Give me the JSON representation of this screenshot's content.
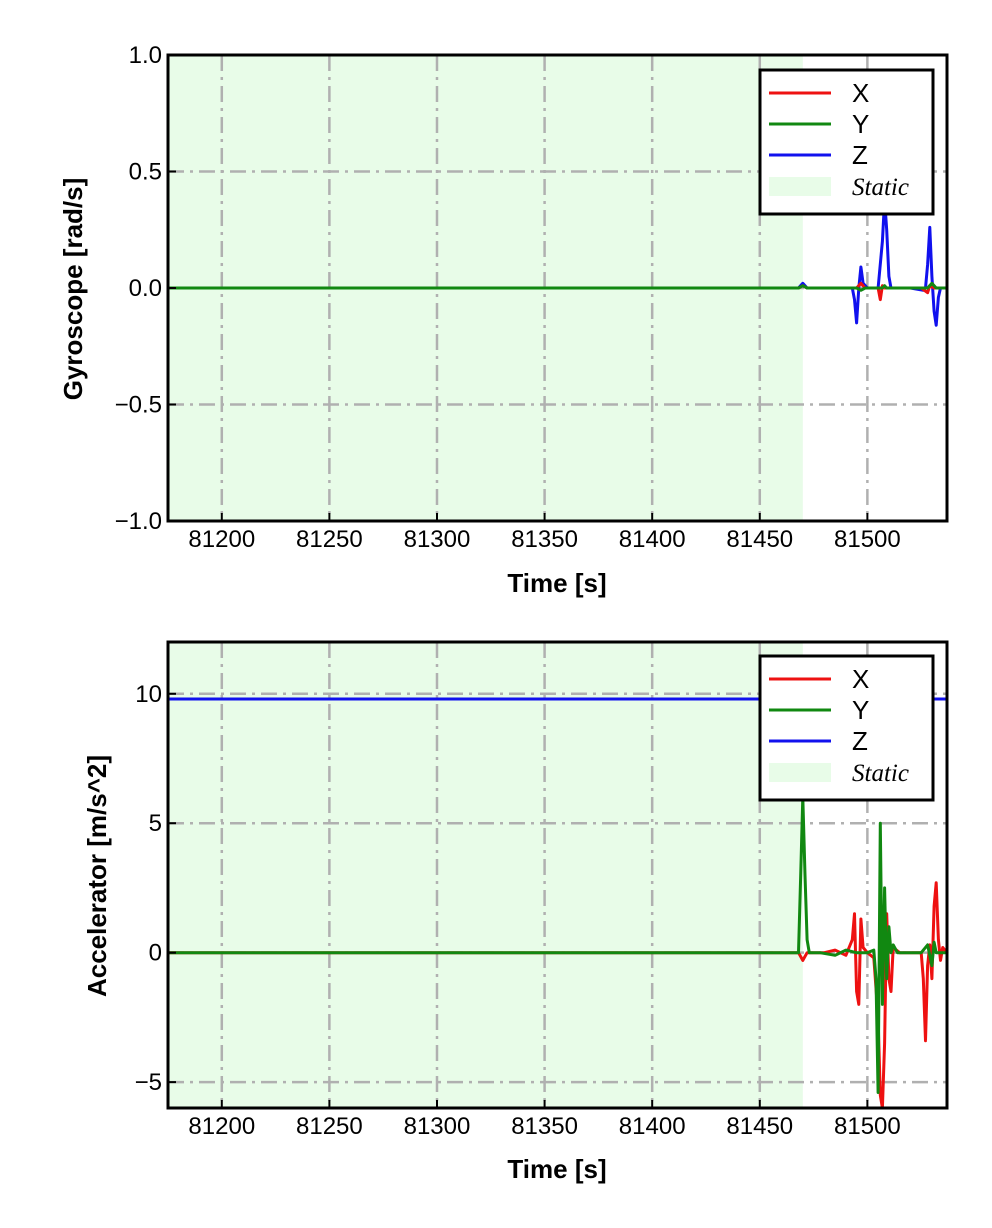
{
  "chart_data": [
    {
      "type": "line",
      "xlabel": "Time [s]",
      "ylabel": "Gyroscope [rad/s]",
      "xlim": [
        81175,
        81537
      ],
      "ylim": [
        -1.0,
        1.0
      ],
      "x_ticks": [
        81200,
        81250,
        81300,
        81350,
        81400,
        81450,
        81500
      ],
      "x_tick_labels": [
        "81200",
        "81250",
        "81300",
        "81350",
        "81400",
        "81450",
        "81500"
      ],
      "y_ticks": [
        1.0,
        0.5,
        0.0,
        -0.5,
        -1.0
      ],
      "y_tick_labels": [
        "1.0",
        "0.5",
        "0.0",
        "−0.5",
        "−1.0"
      ],
      "grid": true,
      "legend_position": "top-right",
      "static_region": {
        "label": "Static",
        "x_start": 81175,
        "x_end": 81470,
        "color": "#e8fce8"
      },
      "series": [
        {
          "name": "X",
          "color": "#ee1111",
          "x": [
            81175,
            81468,
            81470,
            81472,
            81495,
            81497,
            81499,
            81505,
            81506,
            81507,
            81508,
            81525,
            81528,
            81529,
            81531,
            81533,
            81537
          ],
          "y": [
            0.0,
            0.0,
            0.01,
            0.0,
            0.0,
            0.02,
            0.0,
            0.0,
            -0.05,
            0.01,
            0.0,
            0.0,
            -0.02,
            0.01,
            0.0,
            0.0,
            0.0
          ]
        },
        {
          "name": "Y",
          "color": "#118811",
          "x": [
            81175,
            81468,
            81470,
            81472,
            81495,
            81497,
            81499,
            81507,
            81508,
            81509,
            81510,
            81528,
            81530,
            81532,
            81537
          ],
          "y": [
            0.0,
            0.0,
            0.01,
            0.0,
            0.0,
            -0.01,
            0.0,
            0.0,
            0.01,
            0.0,
            0.0,
            0.0,
            0.02,
            0.0,
            0.0
          ]
        },
        {
          "name": "Z",
          "color": "#1111ee",
          "x": [
            81175,
            81468,
            81470,
            81472,
            81493,
            81494,
            81495,
            81496,
            81497,
            81498,
            81500,
            81505,
            81507,
            81508,
            81509,
            81510,
            81511,
            81520,
            81526,
            81527,
            81528,
            81529,
            81530,
            81531,
            81532,
            81533,
            81534,
            81537
          ],
          "y": [
            0.0,
            0.0,
            0.02,
            0.0,
            0.0,
            -0.05,
            -0.15,
            0.0,
            0.09,
            0.02,
            0.0,
            0.0,
            0.2,
            0.38,
            0.25,
            0.05,
            0.0,
            0.0,
            -0.01,
            0.0,
            0.1,
            0.26,
            0.05,
            -0.1,
            -0.16,
            -0.04,
            0.0,
            0.0
          ]
        }
      ],
      "legend": {
        "x_label": "X",
        "y_label": "Y",
        "z_label": "Z",
        "static_label": "Static"
      }
    },
    {
      "type": "line",
      "xlabel": "Time [s]",
      "ylabel": "Accelerator [m/s^2]",
      "xlim": [
        81175,
        81537
      ],
      "ylim": [
        -6.0,
        12.0
      ],
      "x_ticks": [
        81200,
        81250,
        81300,
        81350,
        81400,
        81450,
        81500
      ],
      "x_tick_labels": [
        "81200",
        "81250",
        "81300",
        "81350",
        "81400",
        "81450",
        "81500"
      ],
      "y_ticks": [
        10,
        5,
        0,
        -5
      ],
      "y_tick_labels": [
        "10",
        "5",
        "0",
        "−5"
      ],
      "grid": true,
      "legend_position": "top-right",
      "static_region": {
        "label": "Static",
        "x_start": 81175,
        "x_end": 81470,
        "color": "#e8fce8"
      },
      "series": [
        {
          "name": "X",
          "color": "#ee1111",
          "x": [
            81175,
            81468,
            81470,
            81472,
            81480,
            81485,
            81490,
            81493,
            81494,
            81495,
            81496,
            81497,
            81498,
            81500,
            81503,
            81505,
            81506,
            81507,
            81508,
            81509,
            81510,
            81511,
            81512,
            81515,
            81520,
            81525,
            81526,
            81527,
            81528,
            81529,
            81530,
            81531,
            81532,
            81533,
            81534,
            81535,
            81537
          ],
          "y": [
            0.0,
            0.0,
            -0.3,
            0.0,
            0.0,
            0.1,
            -0.1,
            0.5,
            1.5,
            -1.5,
            -2.0,
            1.3,
            0.2,
            0.0,
            -0.2,
            -2.5,
            -5.5,
            -6.0,
            -3.5,
            1.5,
            -1.0,
            -1.5,
            0.2,
            0.0,
            0.0,
            0.0,
            -1.0,
            -3.4,
            -0.5,
            0.3,
            -1.0,
            1.8,
            2.7,
            0.5,
            -0.3,
            0.2,
            0.0
          ]
        },
        {
          "name": "Y",
          "color": "#118811",
          "x": [
            81175,
            81468,
            81469,
            81470,
            81471,
            81472,
            81473,
            81478,
            81485,
            81490,
            81495,
            81500,
            81503,
            81504,
            81505,
            81506,
            81507,
            81508,
            81509,
            81510,
            81511,
            81512,
            81514,
            81520,
            81525,
            81528,
            81530,
            81531,
            81532,
            81537
          ],
          "y": [
            0.0,
            0.0,
            3.0,
            6.0,
            3.0,
            0.5,
            0.0,
            0.0,
            -0.1,
            0.1,
            0.0,
            0.0,
            0.1,
            -1.0,
            -5.4,
            5.0,
            -2.0,
            2.5,
            -1.0,
            1.0,
            0.0,
            0.3,
            0.0,
            0.0,
            0.0,
            0.3,
            -0.5,
            0.4,
            0.0,
            0.0
          ]
        },
        {
          "name": "Z",
          "color": "#1111ee",
          "x": [
            81175,
            81537
          ],
          "y": [
            9.8,
            9.8
          ]
        }
      ],
      "legend": {
        "x_label": "X",
        "y_label": "Y",
        "z_label": "Z",
        "static_label": "Static"
      }
    }
  ]
}
